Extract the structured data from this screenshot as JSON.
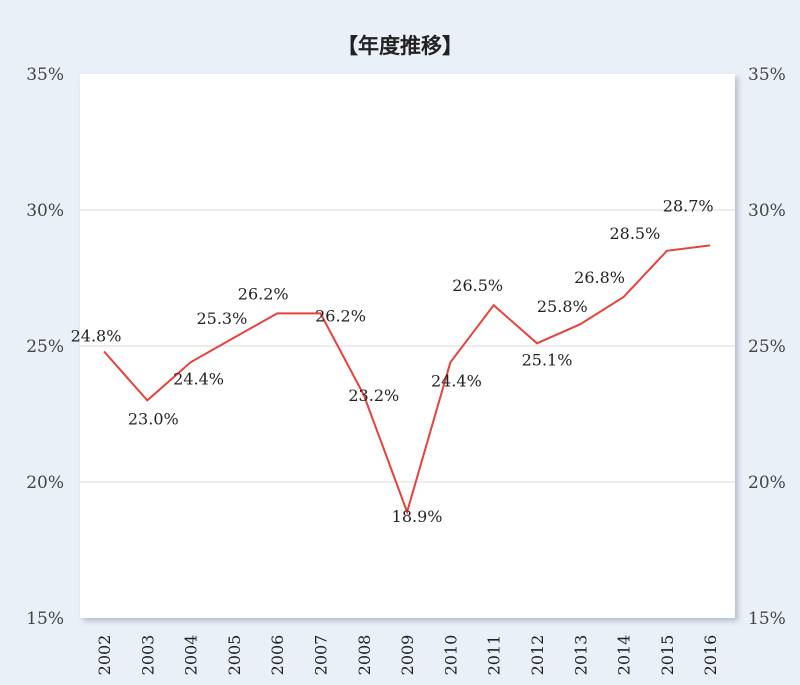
{
  "chart_data": {
    "type": "line",
    "title": "【年度推移】",
    "categories": [
      "2002",
      "2003",
      "2004",
      "2005",
      "2006",
      "2007",
      "2008",
      "2009",
      "2010",
      "2011",
      "2012",
      "2013",
      "2014",
      "2015",
      "2016"
    ],
    "series": [
      {
        "values": [
          24.8,
          23.0,
          24.4,
          25.3,
          26.2,
          26.2,
          23.2,
          18.9,
          24.4,
          26.5,
          25.1,
          25.8,
          26.8,
          28.5,
          28.7
        ],
        "labels": [
          "24.8%",
          "23.0%",
          "24.4%",
          "25.3%",
          "26.2%",
          "26.2%",
          "23.2%",
          "18.9%",
          "24.4%",
          "26.5%",
          "25.1%",
          "25.8%",
          "26.8%",
          "28.5%",
          "28.7%"
        ],
        "color": "#e8413a"
      }
    ],
    "ylim": [
      15,
      35
    ],
    "yticks": [
      "15%",
      "20%",
      "25%",
      "30%",
      "35%"
    ],
    "yticks_right": [
      "15%",
      "20%",
      "25%",
      "30%",
      "35%"
    ],
    "grid": true,
    "legend": "none",
    "colors": {
      "background": "#eaf0f8",
      "plot": "#ffffff",
      "grid": "#d9d9d9",
      "line": "#e8413a"
    }
  }
}
